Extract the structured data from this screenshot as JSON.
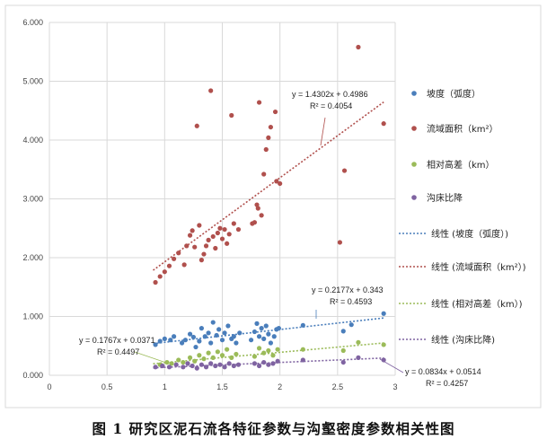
{
  "caption": "图 1    研究区泥石流各特征参数与沟壑密度参数相关性图",
  "chart_data": {
    "type": "scatter",
    "xlim": [
      0,
      3
    ],
    "ylim": [
      0,
      6
    ],
    "x_ticks": [
      "0",
      "0.5",
      "1",
      "1.5",
      "2",
      "2.5",
      "3"
    ],
    "y_ticks": [
      "0.000",
      "1.000",
      "2.000",
      "3.000",
      "4.000",
      "5.000",
      "6.000"
    ],
    "grid": true,
    "legend_position": "right",
    "series": [
      {
        "name": "坡度（弧度）",
        "color": "#4a7ebb",
        "points": [
          [
            0.92,
            0.52
          ],
          [
            0.96,
            0.58
          ],
          [
            1.0,
            0.62
          ],
          [
            1.05,
            0.6
          ],
          [
            1.08,
            0.66
          ],
          [
            1.15,
            0.55
          ],
          [
            1.18,
            0.6
          ],
          [
            1.22,
            0.7
          ],
          [
            1.25,
            0.65
          ],
          [
            1.27,
            0.48
          ],
          [
            1.3,
            0.58
          ],
          [
            1.32,
            0.8
          ],
          [
            1.35,
            0.66
          ],
          [
            1.38,
            0.72
          ],
          [
            1.4,
            0.55
          ],
          [
            1.42,
            0.9
          ],
          [
            1.45,
            0.68
          ],
          [
            1.47,
            0.78
          ],
          [
            1.5,
            0.6
          ],
          [
            1.52,
            0.72
          ],
          [
            1.55,
            0.84
          ],
          [
            1.58,
            0.62
          ],
          [
            1.6,
            0.66
          ],
          [
            1.62,
            0.55
          ],
          [
            1.65,
            0.72
          ],
          [
            1.75,
            0.6
          ],
          [
            1.78,
            0.74
          ],
          [
            1.8,
            0.88
          ],
          [
            1.82,
            0.66
          ],
          [
            1.84,
            0.8
          ],
          [
            1.86,
            0.62
          ],
          [
            1.88,
            0.84
          ],
          [
            1.9,
            0.7
          ],
          [
            1.92,
            0.55
          ],
          [
            1.95,
            0.66
          ],
          [
            1.97,
            0.78
          ],
          [
            1.99,
            0.8
          ],
          [
            2.2,
            0.85
          ],
          [
            2.55,
            0.75
          ],
          [
            2.62,
            0.86
          ],
          [
            2.9,
            1.05
          ]
        ]
      },
      {
        "name": "流域面积（km²）",
        "color": "#b0504d",
        "points": [
          [
            0.92,
            1.58
          ],
          [
            0.96,
            1.68
          ],
          [
            1.0,
            1.76
          ],
          [
            1.04,
            1.86
          ],
          [
            1.08,
            1.98
          ],
          [
            1.12,
            2.08
          ],
          [
            1.17,
            1.88
          ],
          [
            1.19,
            2.2
          ],
          [
            1.22,
            2.38
          ],
          [
            1.24,
            2.46
          ],
          [
            1.26,
            2.18
          ],
          [
            1.28,
            4.24
          ],
          [
            1.3,
            2.55
          ],
          [
            1.32,
            1.96
          ],
          [
            1.34,
            2.06
          ],
          [
            1.36,
            2.2
          ],
          [
            1.38,
            2.3
          ],
          [
            1.4,
            4.84
          ],
          [
            1.42,
            2.36
          ],
          [
            1.44,
            2.16
          ],
          [
            1.46,
            2.42
          ],
          [
            1.48,
            2.5
          ],
          [
            1.5,
            2.32
          ],
          [
            1.52,
            2.48
          ],
          [
            1.54,
            2.24
          ],
          [
            1.56,
            2.4
          ],
          [
            1.58,
            4.42
          ],
          [
            1.6,
            2.58
          ],
          [
            1.64,
            2.48
          ],
          [
            1.76,
            2.58
          ],
          [
            1.78,
            2.6
          ],
          [
            1.8,
            2.9
          ],
          [
            1.81,
            2.84
          ],
          [
            1.82,
            4.64
          ],
          [
            1.84,
            2.72
          ],
          [
            1.86,
            3.42
          ],
          [
            1.88,
            3.84
          ],
          [
            1.9,
            4.04
          ],
          [
            1.92,
            4.22
          ],
          [
            1.96,
            4.48
          ],
          [
            1.97,
            3.3
          ],
          [
            2.0,
            3.26
          ],
          [
            2.52,
            2.26
          ],
          [
            2.56,
            3.48
          ],
          [
            2.68,
            5.58
          ],
          [
            2.9,
            4.28
          ]
        ]
      },
      {
        "name": "相对高差（km）",
        "color": "#9bbb59",
        "points": [
          [
            0.96,
            0.18
          ],
          [
            1.02,
            0.22
          ],
          [
            1.06,
            0.2
          ],
          [
            1.12,
            0.26
          ],
          [
            1.16,
            0.22
          ],
          [
            1.22,
            0.3
          ],
          [
            1.26,
            0.24
          ],
          [
            1.3,
            0.34
          ],
          [
            1.34,
            0.28
          ],
          [
            1.38,
            0.38
          ],
          [
            1.42,
            0.3
          ],
          [
            1.46,
            0.4
          ],
          [
            1.5,
            0.34
          ],
          [
            1.54,
            0.44
          ],
          [
            1.58,
            0.3
          ],
          [
            1.62,
            0.36
          ],
          [
            1.78,
            0.32
          ],
          [
            1.82,
            0.46
          ],
          [
            1.86,
            0.38
          ],
          [
            1.9,
            0.42
          ],
          [
            1.94,
            0.34
          ],
          [
            1.98,
            0.44
          ],
          [
            2.2,
            0.44
          ],
          [
            2.55,
            0.42
          ],
          [
            2.68,
            0.56
          ],
          [
            2.9,
            0.52
          ]
        ]
      },
      {
        "name": "沟床比降",
        "color": "#7f63a1",
        "points": [
          [
            0.92,
            0.14
          ],
          [
            0.98,
            0.16
          ],
          [
            1.04,
            0.14
          ],
          [
            1.1,
            0.18
          ],
          [
            1.16,
            0.14
          ],
          [
            1.2,
            0.2
          ],
          [
            1.24,
            0.16
          ],
          [
            1.28,
            0.12
          ],
          [
            1.32,
            0.18
          ],
          [
            1.36,
            0.14
          ],
          [
            1.4,
            0.2
          ],
          [
            1.44,
            0.16
          ],
          [
            1.48,
            0.18
          ],
          [
            1.52,
            0.14
          ],
          [
            1.56,
            0.2
          ],
          [
            1.6,
            0.16
          ],
          [
            1.64,
            0.18
          ],
          [
            1.78,
            0.2
          ],
          [
            1.82,
            0.16
          ],
          [
            1.86,
            0.22
          ],
          [
            1.9,
            0.18
          ],
          [
            1.94,
            0.2
          ],
          [
            1.98,
            0.24
          ],
          [
            2.2,
            0.26
          ],
          [
            2.55,
            0.22
          ],
          [
            2.68,
            0.3
          ],
          [
            2.9,
            0.26
          ]
        ]
      }
    ],
    "trendlines": [
      {
        "name": "线性 (坡度（弧度）)",
        "color": "#4a7ebb",
        "slope": 0.2177,
        "intercept": 0.343,
        "x_range": [
          0.9,
          2.9
        ],
        "equation": "y = 0.2177x + 0.343",
        "r2": "R² = 0.4593"
      },
      {
        "name": "线性 (流域面积（km²）)",
        "color": "#b0504d",
        "slope": 1.4302,
        "intercept": 0.4986,
        "x_range": [
          0.9,
          2.9
        ],
        "equation": "y = 1.4302x + 0.4986",
        "r2": "R² = 0.4054"
      },
      {
        "name": "线性 (相对高差（km）)",
        "color": "#9bbb59",
        "slope": 0.1767,
        "intercept": 0.0371,
        "x_range": [
          0.9,
          2.9
        ],
        "equation": "y = 0.1767x + 0.0371",
        "r2": "R² = 0.4497"
      },
      {
        "name": "线性 (沟床比降)",
        "color": "#7f63a1",
        "slope": 0.0834,
        "intercept": 0.0514,
        "x_range": [
          0.9,
          2.9
        ],
        "equation": "y = 0.0834x + 0.0514",
        "r2": "R² = 0.4257"
      }
    ]
  }
}
